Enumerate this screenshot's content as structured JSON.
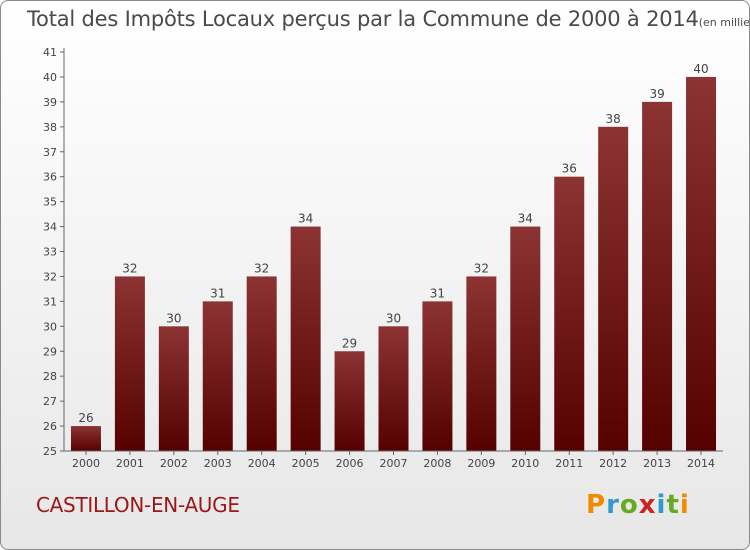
{
  "header": {
    "title": "Total des Impôts Locaux perçus par la Commune de 2000 à 2014",
    "unit": "(en milliers d'€)"
  },
  "commune": "CASTILLON-EN-AUGE",
  "logo": {
    "letters": [
      "P",
      "r",
      "o",
      "x",
      "i",
      "t",
      "i"
    ],
    "colors": [
      "#f08a00",
      "#3399cc",
      "#66aa22",
      "#cc2222",
      "#3399cc",
      "#66aa22",
      "#f08a00"
    ]
  },
  "colors": {
    "bar_top": "#8c3434",
    "bar_bottom": "#560000",
    "axis": "#666666",
    "grid_tick": "#999999",
    "text": "#444444"
  },
  "chart_data": {
    "type": "bar",
    "title": "Total des Impôts Locaux perçus par la Commune de 2000 à 2014",
    "xlabel": "",
    "ylabel": "",
    "categories": [
      "2000",
      "2001",
      "2002",
      "2003",
      "2004",
      "2005",
      "2006",
      "2007",
      "2008",
      "2009",
      "2010",
      "2011",
      "2012",
      "2013",
      "2014"
    ],
    "values": [
      26,
      32,
      30,
      31,
      32,
      34,
      29,
      30,
      31,
      32,
      34,
      36,
      38,
      39,
      40
    ],
    "ylim": [
      25,
      41
    ],
    "yticks": [
      25,
      26,
      27,
      28,
      29,
      30,
      31,
      32,
      33,
      34,
      35,
      36,
      37,
      38,
      39,
      40,
      41
    ]
  }
}
